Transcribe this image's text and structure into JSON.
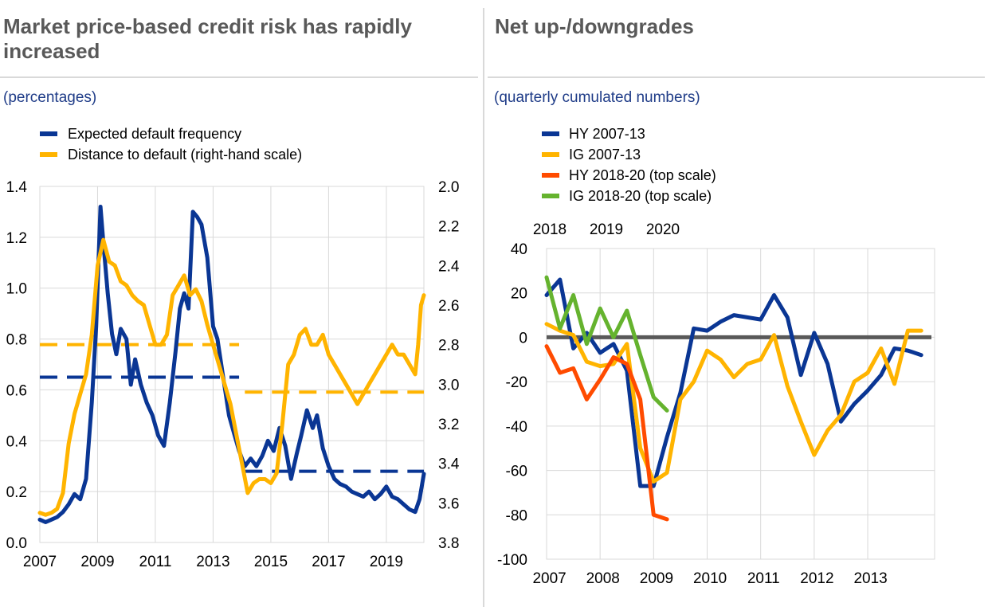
{
  "left_panel": {
    "title": "Market price-based credit risk has rapidly increased",
    "subtitle": "(percentages)"
  },
  "right_panel": {
    "title": "Net up-/downgrades",
    "subtitle": "(quarterly cumulated  numbers)"
  },
  "chart_data": [
    {
      "type": "line",
      "legend_placement": "top-left",
      "grid": true,
      "x_ticks": [
        "2007",
        "2009",
        "2011",
        "2013",
        "2015",
        "2017",
        "2019"
      ],
      "y_ticks_left": [
        "0.0",
        "0.2",
        "0.4",
        "0.6",
        "0.8",
        "1.0",
        "1.2",
        "1.4"
      ],
      "y_ticks_right": [
        "2.0",
        "2.2",
        "2.4",
        "2.6",
        "2.8",
        "3.0",
        "3.2",
        "3.4",
        "3.6",
        "3.8"
      ],
      "xlim": [
        2007,
        2020.3
      ],
      "ylim": [
        0,
        1.4
      ],
      "y2lim": [
        3.8,
        2.0
      ],
      "series": [
        {
          "name": "Expected default frequency",
          "color": "#0a3694",
          "axis": "left",
          "x": [
            2007.0,
            2007.2,
            2007.4,
            2007.6,
            2007.8,
            2008.0,
            2008.2,
            2008.4,
            2008.6,
            2008.8,
            2008.95,
            2009.1,
            2009.2,
            2009.35,
            2009.5,
            2009.65,
            2009.8,
            2010.0,
            2010.15,
            2010.3,
            2010.5,
            2010.7,
            2010.9,
            2011.1,
            2011.3,
            2011.5,
            2011.7,
            2011.85,
            2012.0,
            2012.15,
            2012.3,
            2012.45,
            2012.6,
            2012.8,
            2013.0,
            2013.15,
            2013.35,
            2013.55,
            2013.75,
            2013.9,
            2014.1,
            2014.3,
            2014.5,
            2014.7,
            2014.9,
            2015.1,
            2015.3,
            2015.5,
            2015.7,
            2015.9,
            2016.05,
            2016.25,
            2016.45,
            2016.6,
            2016.8,
            2017.0,
            2017.2,
            2017.4,
            2017.6,
            2017.8,
            2018.0,
            2018.2,
            2018.4,
            2018.6,
            2018.8,
            2019.0,
            2019.2,
            2019.4,
            2019.6,
            2019.8,
            2020.0,
            2020.15,
            2020.3
          ],
          "y": [
            0.09,
            0.08,
            0.09,
            0.1,
            0.12,
            0.15,
            0.19,
            0.17,
            0.25,
            0.55,
            0.85,
            1.32,
            1.18,
            0.98,
            0.82,
            0.74,
            0.84,
            0.8,
            0.62,
            0.72,
            0.62,
            0.55,
            0.5,
            0.42,
            0.38,
            0.55,
            0.75,
            0.92,
            0.98,
            0.92,
            1.3,
            1.28,
            1.25,
            1.12,
            0.85,
            0.8,
            0.65,
            0.5,
            0.42,
            0.36,
            0.3,
            0.33,
            0.3,
            0.34,
            0.4,
            0.36,
            0.45,
            0.38,
            0.25,
            0.35,
            0.42,
            0.52,
            0.45,
            0.5,
            0.37,
            0.3,
            0.25,
            0.23,
            0.22,
            0.2,
            0.19,
            0.18,
            0.2,
            0.17,
            0.19,
            0.22,
            0.18,
            0.17,
            0.15,
            0.13,
            0.12,
            0.17,
            0.27
          ]
        },
        {
          "name": "Distance to default (right-hand scale)",
          "color": "#ffb400",
          "axis": "right",
          "x": [
            2007.0,
            2007.2,
            2007.4,
            2007.6,
            2007.8,
            2008.0,
            2008.2,
            2008.4,
            2008.6,
            2008.8,
            2009.0,
            2009.2,
            2009.4,
            2009.6,
            2009.8,
            2010.0,
            2010.2,
            2010.4,
            2010.6,
            2010.8,
            2011.0,
            2011.2,
            2011.4,
            2011.6,
            2011.8,
            2012.0,
            2012.2,
            2012.4,
            2012.6,
            2012.8,
            2013.0,
            2013.2,
            2013.4,
            2013.6,
            2013.8,
            2014.0,
            2014.2,
            2014.4,
            2014.6,
            2014.8,
            2015.0,
            2015.2,
            2015.4,
            2015.6,
            2015.8,
            2016.0,
            2016.2,
            2016.4,
            2016.6,
            2016.8,
            2017.0,
            2017.2,
            2017.4,
            2017.6,
            2017.8,
            2018.0,
            2018.2,
            2018.4,
            2018.6,
            2018.8,
            2019.0,
            2019.2,
            2019.4,
            2019.6,
            2019.8,
            2020.0,
            2020.1,
            2020.2,
            2020.3
          ],
          "y": [
            3.65,
            3.66,
            3.65,
            3.63,
            3.55,
            3.3,
            3.15,
            3.05,
            2.95,
            2.75,
            2.4,
            2.27,
            2.38,
            2.4,
            2.48,
            2.5,
            2.55,
            2.58,
            2.6,
            2.7,
            2.8,
            2.8,
            2.75,
            2.55,
            2.5,
            2.45,
            2.55,
            2.52,
            2.58,
            2.7,
            2.8,
            2.9,
            3.0,
            3.1,
            3.25,
            3.4,
            3.55,
            3.5,
            3.48,
            3.48,
            3.5,
            3.45,
            3.2,
            2.9,
            2.85,
            2.75,
            2.72,
            2.8,
            2.8,
            2.75,
            2.85,
            2.9,
            2.95,
            3.0,
            3.05,
            3.1,
            3.05,
            3.0,
            2.95,
            2.9,
            2.85,
            2.8,
            2.85,
            2.85,
            2.9,
            2.95,
            2.8,
            2.6,
            2.55
          ]
        },
        {
          "name": "",
          "color": "#0a3694",
          "style": "dashed",
          "axis": "left",
          "segments": [
            [
              2007.0,
              2013.9,
              0.65
            ],
            [
              2014.1,
              2020.3,
              0.28
            ]
          ]
        },
        {
          "name": "",
          "color": "#ffb400",
          "style": "dashed",
          "axis": "right",
          "segments": [
            [
              2007.0,
              2013.9,
              2.8
            ],
            [
              2014.1,
              2020.3,
              3.04
            ]
          ]
        }
      ]
    },
    {
      "type": "line",
      "legend_placement": "top-left",
      "grid": true,
      "x_ticks": [
        "2007",
        "2008",
        "2009",
        "2010",
        "2011",
        "2012",
        "2013"
      ],
      "top_x_ticks": [
        "2018",
        "2019",
        "2020"
      ],
      "y_ticks": [
        "40",
        "20",
        "0",
        "-20",
        "-40",
        "-60",
        "-80",
        "-100"
      ],
      "xlim": [
        2007,
        2014.25
      ],
      "ylim": [
        -100,
        40
      ],
      "zero_line": {
        "y": 0,
        "color": "#595959"
      },
      "series": [
        {
          "name": "HY 2007-13",
          "color": "#0a3694",
          "x": [
            2007.0,
            2007.25,
            2007.5,
            2007.75,
            2008.0,
            2008.25,
            2008.5,
            2008.75,
            2009.0,
            2009.25,
            2009.5,
            2009.75,
            2010.0,
            2010.25,
            2010.5,
            2010.75,
            2011.0,
            2011.25,
            2011.5,
            2011.75,
            2012.0,
            2012.25,
            2012.5,
            2012.75,
            2013.0,
            2013.25,
            2013.5,
            2013.75,
            2014.0
          ],
          "y": [
            19,
            26,
            -5,
            2,
            -7,
            -3,
            -15,
            -67,
            -67,
            -45,
            -25,
            4,
            3,
            7,
            10,
            9,
            8,
            19,
            9,
            -17,
            2,
            -12,
            -38,
            -30,
            -24,
            -17,
            -5,
            -6,
            -8
          ]
        },
        {
          "name": "IG 2007-13",
          "color": "#ffb400",
          "x": [
            2007.0,
            2007.25,
            2007.5,
            2007.75,
            2008.0,
            2008.25,
            2008.5,
            2008.75,
            2009.0,
            2009.25,
            2009.5,
            2009.75,
            2010.0,
            2010.25,
            2010.5,
            2010.75,
            2011.0,
            2011.25,
            2011.5,
            2011.75,
            2012.0,
            2012.25,
            2012.5,
            2012.75,
            2013.0,
            2013.25,
            2013.5,
            2013.75,
            2014.0
          ],
          "y": [
            6,
            3,
            1,
            -11,
            -13,
            -12,
            -3,
            -50,
            -65,
            -61,
            -28,
            -20,
            -6,
            -10,
            -18,
            -12,
            -10,
            1,
            -22,
            -38,
            -53,
            -42,
            -35,
            -20,
            -16,
            -5,
            -21,
            3,
            3
          ]
        },
        {
          "name": "HY 2018-20  (top scale)",
          "color": "#ff4b00",
          "x": [
            2007.0,
            2007.25,
            2007.5,
            2007.75,
            2008.0,
            2008.25,
            2008.5,
            2008.75,
            2009.0,
            2009.25
          ],
          "y": [
            -4,
            -16,
            -14,
            -28,
            -19,
            -9,
            -12,
            -28,
            -80,
            -82
          ]
        },
        {
          "name": "IG 2018-20  (top scale)",
          "color": "#65b32e",
          "x": [
            2007.0,
            2007.25,
            2007.5,
            2007.75,
            2008.0,
            2008.25,
            2008.5,
            2008.75,
            2009.0,
            2009.25
          ],
          "y": [
            27,
            4,
            19,
            -3,
            13,
            0,
            12,
            -8,
            -27,
            -33
          ]
        }
      ]
    }
  ]
}
